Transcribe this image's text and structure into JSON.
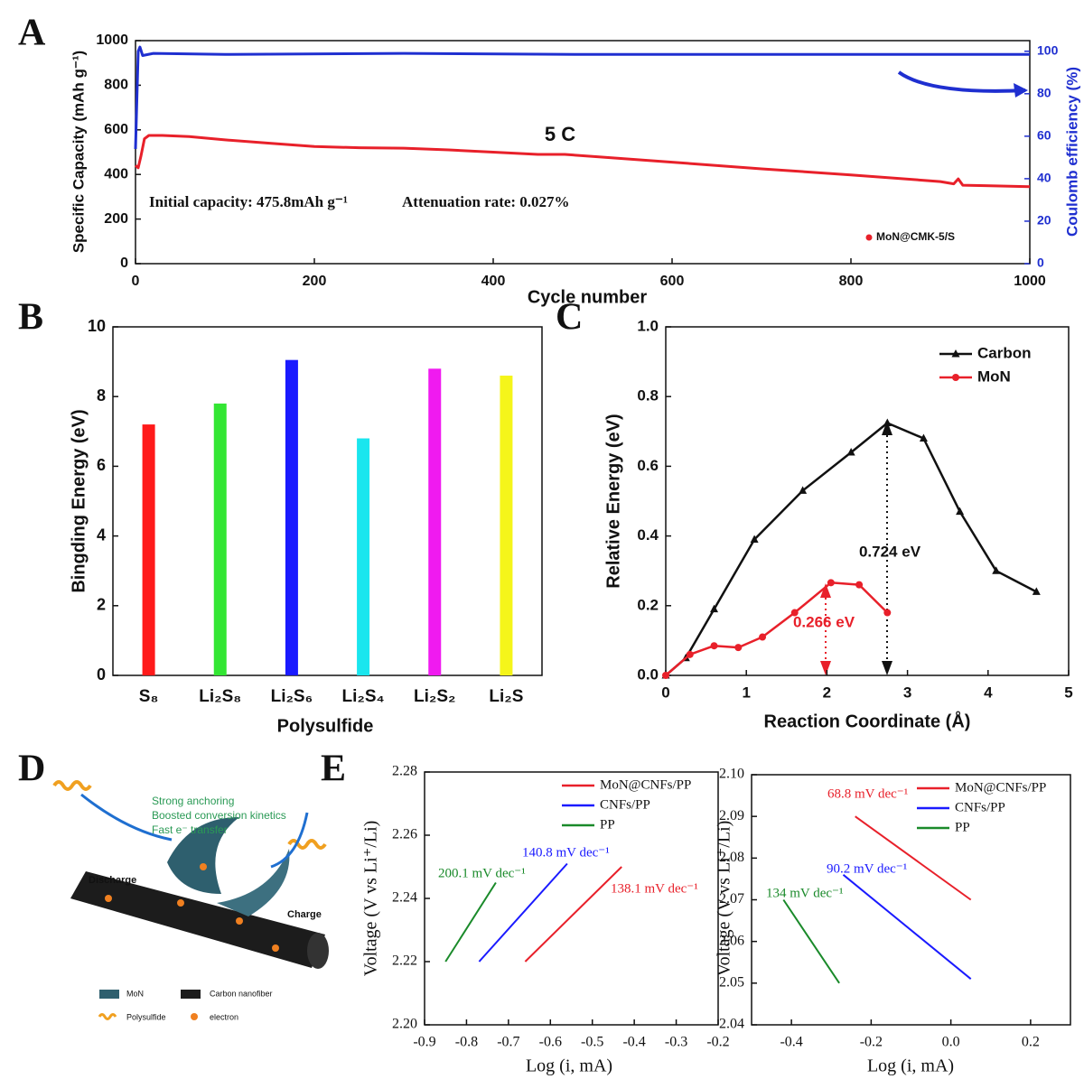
{
  "chart_data": [
    {
      "type": "line",
      "panel": "A",
      "xlabel": "Cycle number",
      "ylabel": "Specific Capacity (mAh g⁻¹)",
      "y2label": "Coulomb efficiency (%)",
      "xlim": [
        0,
        1000
      ],
      "xticks": [
        0,
        200,
        400,
        600,
        800,
        1000
      ],
      "ylim": [
        0,
        1000
      ],
      "yticks": [
        0,
        200,
        400,
        600,
        800,
        1000
      ],
      "y2lim": [
        0,
        105
      ],
      "y2ticks": [
        0,
        20,
        40,
        60,
        80,
        100
      ],
      "y2_color": "#1f2fd0",
      "annotations": [
        "5 C",
        "Initial capacity: 475.8mAh g⁻¹",
        "Attenuation rate: 0.027%"
      ],
      "series": [
        {
          "name": "MoN@CMK-5/S",
          "color": "#e8202a",
          "x": [
            0,
            3,
            6,
            10,
            15,
            30,
            60,
            100,
            150,
            200,
            250,
            300,
            350,
            400,
            450,
            480,
            520,
            600,
            700,
            800,
            900,
            915,
            920,
            925,
            950,
            1000
          ],
          "values": [
            440,
            430,
            480,
            560,
            575,
            575,
            570,
            555,
            540,
            525,
            520,
            518,
            510,
            500,
            490,
            490,
            478,
            455,
            425,
            398,
            368,
            358,
            380,
            352,
            350,
            345
          ]
        },
        {
          "color": "#1f2fd0",
          "axis": "y2",
          "x": [
            0,
            3,
            5,
            8,
            20,
            100,
            300,
            500,
            700,
            900,
            1000
          ],
          "values": [
            54,
            100,
            102,
            98,
            99,
            98.5,
            99,
            98.5,
            98.5,
            98.5,
            98.5
          ]
        }
      ]
    },
    {
      "type": "bar",
      "panel": "B",
      "xlabel": "Polysulfide",
      "ylabel": "Bingding Energy (eV)",
      "categories": [
        "S₈",
        "Li₂S₈",
        "Li₂S₆",
        "Li₂S₄",
        "Li₂S₂",
        "Li₂S"
      ],
      "values": [
        7.2,
        7.8,
        9.05,
        6.8,
        8.8,
        8.6
      ],
      "colors": [
        "#ff1a1a",
        "#33e633",
        "#1a1aff",
        "#1ae6ee",
        "#f01af0",
        "#f5f51a"
      ],
      "ylim": [
        0,
        10
      ],
      "yticks": [
        0,
        2,
        4,
        6,
        8,
        10
      ]
    },
    {
      "type": "line",
      "panel": "C",
      "xlabel": "Reaction Coordinate (Å)",
      "ylabel": "Relative Energy (eV)",
      "xlim": [
        0,
        5
      ],
      "xticks": [
        0,
        1,
        2,
        3,
        4,
        5
      ],
      "ylim": [
        0,
        1
      ],
      "yticks": [
        {
          "value": 0,
          "label": "0.0"
        },
        0.2,
        0.4,
        0.6,
        0.8,
        {
          "value": 1,
          "label": "1.0"
        }
      ],
      "annotations": [
        "0.724 eV",
        "0.266 eV"
      ],
      "series": [
        {
          "name": "Carbon",
          "color": "#111111",
          "marker": "triangle",
          "x": [
            0,
            0.25,
            0.6,
            1.1,
            1.7,
            2.3,
            2.75,
            3.2,
            3.65,
            4.1,
            4.6
          ],
          "values": [
            0,
            0.05,
            0.19,
            0.39,
            0.53,
            0.64,
            0.724,
            0.68,
            0.47,
            0.3,
            0.24
          ]
        },
        {
          "name": "MoN",
          "color": "#e8202a",
          "marker": "circle",
          "x": [
            0,
            0.3,
            0.6,
            0.9,
            1.2,
            1.6,
            2.05,
            2.4,
            2.75
          ],
          "values": [
            0,
            0.06,
            0.085,
            0.08,
            0.11,
            0.18,
            0.266,
            0.26,
            0.18
          ]
        }
      ]
    },
    {
      "type": "line",
      "panel": "E",
      "xlabel": "Log (i, mA)",
      "ylabel": "Voltage (V vs Li⁺/Li)",
      "xlim": [
        -0.9,
        -0.2
      ],
      "xticks": [
        -0.9,
        -0.8,
        -0.7,
        -0.6,
        -0.5,
        -0.4,
        -0.3,
        -0.2
      ],
      "ylim": [
        2.2,
        2.28
      ],
      "yticks": [
        {
          "value": 2.2,
          "label": "2.20"
        },
        2.22,
        2.24,
        2.26,
        2.28
      ],
      "annotations": [
        "200.1 mV dec⁻¹",
        "140.8 mV dec⁻¹",
        "138.1 mV dec⁻¹"
      ],
      "series": [
        {
          "name": "MoN@CNFs/PP",
          "color": "#e8202a",
          "x": [
            -0.66,
            -0.43
          ],
          "values": [
            2.22,
            2.25
          ]
        },
        {
          "name": "CNFs/PP",
          "color": "#1a1aff",
          "x": [
            -0.77,
            -0.56
          ],
          "values": [
            2.22,
            2.251
          ]
        },
        {
          "name": "PP",
          "color": "#1a8a2a",
          "x": [
            -0.85,
            -0.73
          ],
          "values": [
            2.22,
            2.245
          ]
        }
      ]
    },
    {
      "type": "line",
      "xlabel": "Log (i, mA)",
      "ylabel": "Voltage (V vs Li⁺/Li)",
      "xlim": [
        -0.5,
        0.3
      ],
      "xticks": [
        -0.4,
        -0.2,
        {
          "value": 0,
          "label": "0.0"
        },
        0.2
      ],
      "ylim": [
        2.04,
        2.1
      ],
      "yticks": [
        2.04,
        2.05,
        2.06,
        2.07,
        2.08,
        2.09,
        {
          "value": 2.1,
          "label": "2.10"
        }
      ],
      "annotations": [
        "68.8 mV dec⁻¹",
        "90.2 mV dec⁻¹",
        "134 mV dec⁻¹"
      ],
      "series": [
        {
          "name": "MoN@CNFs/PP",
          "color": "#e8202a",
          "x": [
            -0.24,
            0.05
          ],
          "values": [
            2.09,
            2.07
          ]
        },
        {
          "name": "CNFs/PP",
          "color": "#1a1aff",
          "x": [
            -0.27,
            0.05
          ],
          "values": [
            2.076,
            2.051
          ]
        },
        {
          "name": "PP",
          "color": "#1a8a2a",
          "x": [
            -0.42,
            -0.28
          ],
          "values": [
            2.07,
            2.05
          ]
        }
      ]
    }
  ],
  "diagram_d": {
    "panel": "D",
    "notes": [
      "Strong anchoring",
      "Boosted conversion kinetics",
      "Fast e⁻ transfer"
    ],
    "discharge": "Discharge",
    "charge": "Charge",
    "legend": [
      "MoN",
      "Carbon nanofiber",
      "Polysulfide",
      "electron"
    ]
  }
}
